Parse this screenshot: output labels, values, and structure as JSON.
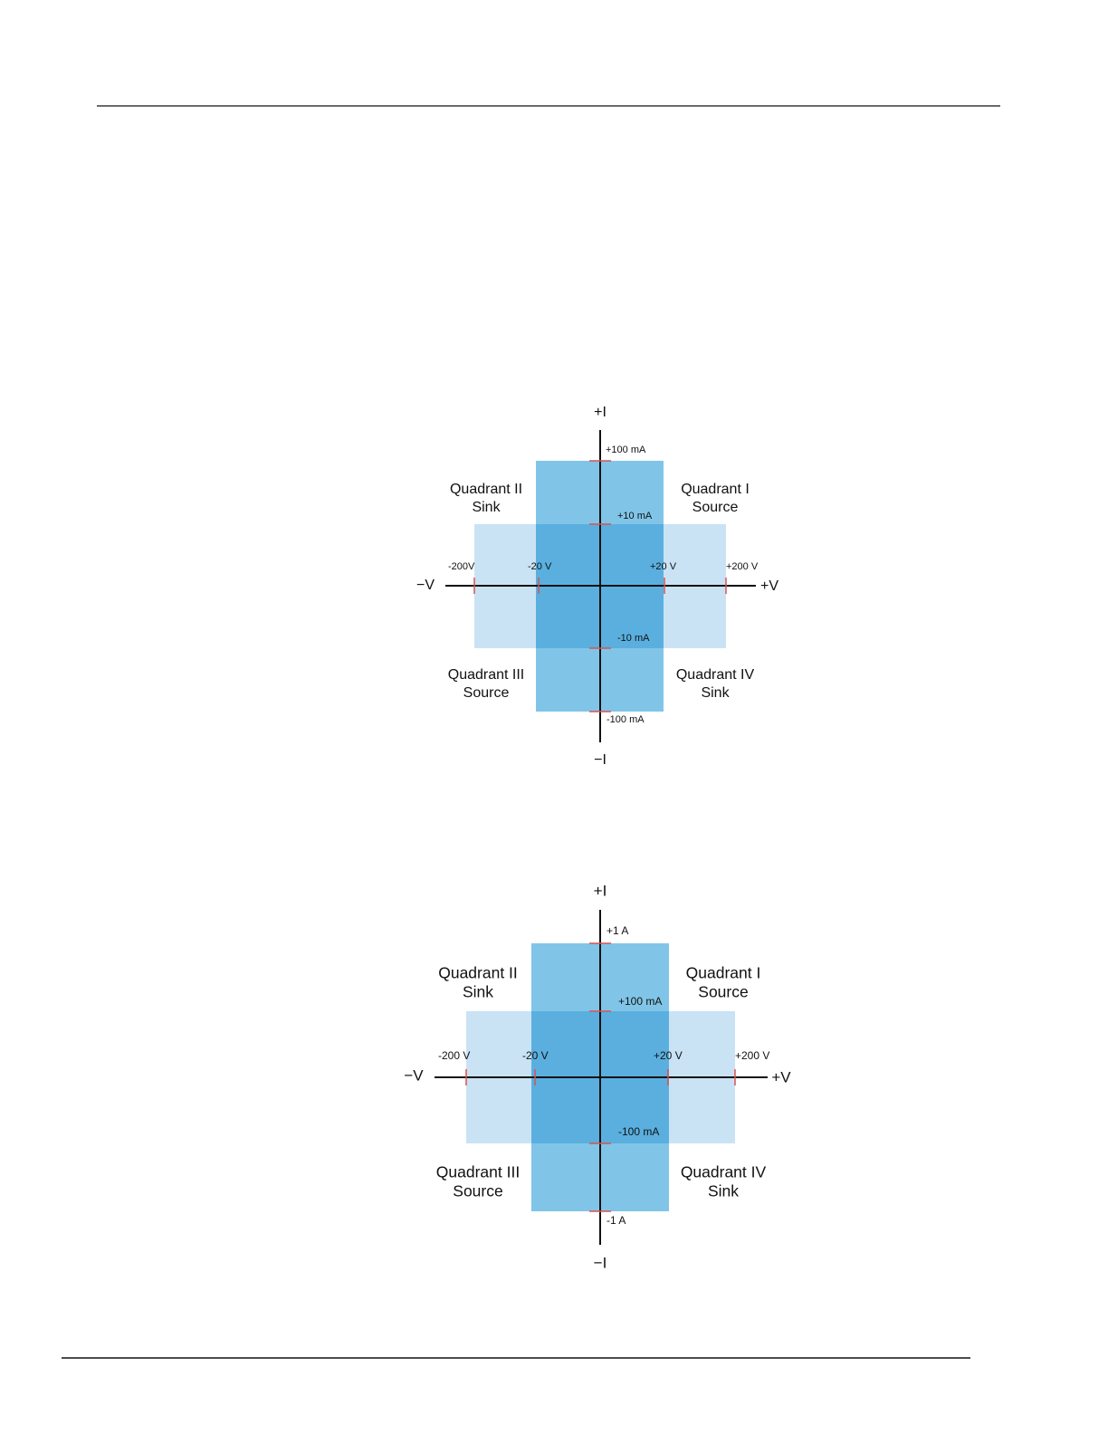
{
  "diagrams": [
    {
      "axes": {
        "plus_i": "+I",
        "minus_i": "−I",
        "minus_v": "−V",
        "plus_v": "+V"
      },
      "current_ticks": [
        "+100 mA",
        "+10 mA",
        "-10 mA",
        "-100 mA"
      ],
      "voltage_ticks": [
        "-200V",
        "-20 V",
        "+20 V",
        "+200 V"
      ],
      "quadrants": [
        {
          "name": "Quadrant II",
          "mode": "Sink"
        },
        {
          "name": "Quadrant I",
          "mode": "Source"
        },
        {
          "name": "Quadrant III",
          "mode": "Source"
        },
        {
          "name": "Quadrant IV",
          "mode": "Sink"
        }
      ]
    },
    {
      "axes": {
        "plus_i": "+I",
        "minus_i": "−I",
        "minus_v": "−V",
        "plus_v": "+V"
      },
      "current_ticks": [
        "+1 A",
        "+100 mA",
        "-100 mA",
        "-1 A"
      ],
      "voltage_ticks": [
        "-200 V",
        "-20 V",
        "+20 V",
        "+200 V"
      ],
      "quadrants": [
        {
          "name": "Quadrant II",
          "mode": "Sink"
        },
        {
          "name": "Quadrant I",
          "mode": "Source"
        },
        {
          "name": "Quadrant III",
          "mode": "Source"
        },
        {
          "name": "Quadrant IV",
          "mode": "Sink"
        }
      ]
    }
  ]
}
